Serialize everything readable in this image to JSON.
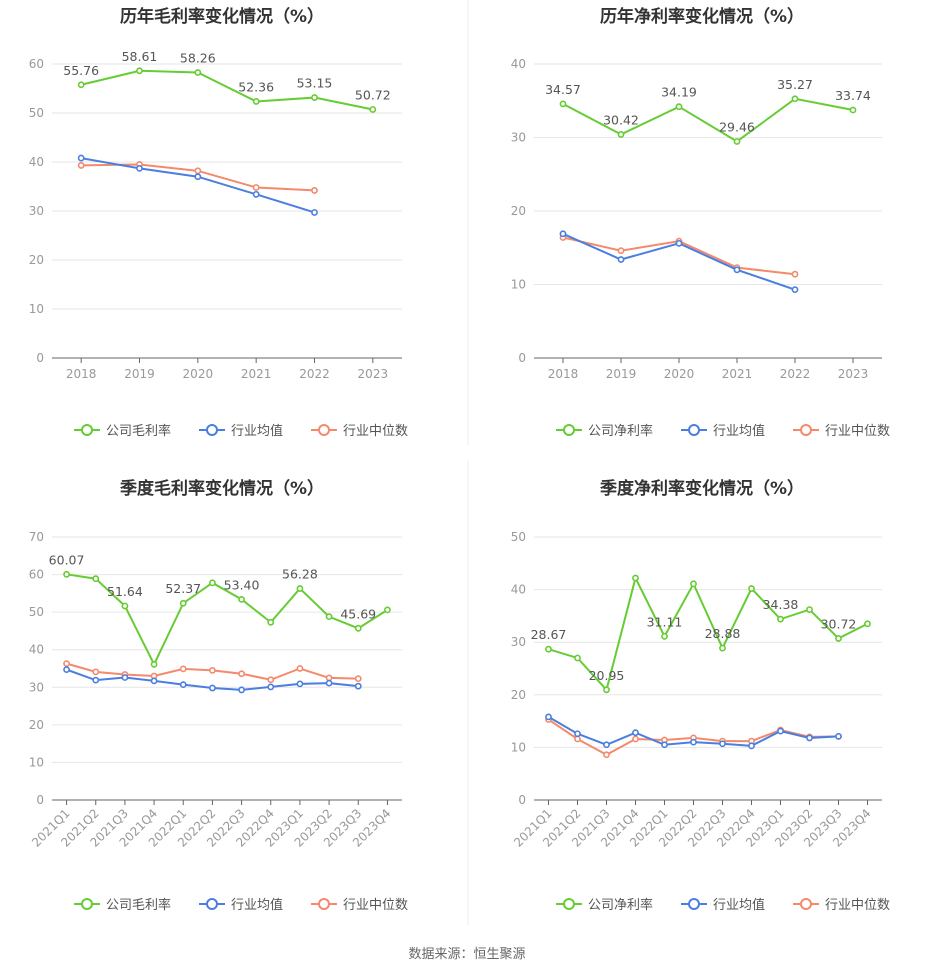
{
  "source": "数据来源：恒生聚源",
  "colors": {
    "company": "#66cc33",
    "industry_avg": "#4a7ee0",
    "industry_median": "#f4896b",
    "grid": "#e6e6e6",
    "axis": "#666666"
  },
  "chart_data": [
    {
      "id": "annual-gross",
      "type": "line",
      "title": "历年毛利率变化情况（%）",
      "categories": [
        "2018",
        "2019",
        "2020",
        "2021",
        "2022",
        "2023"
      ],
      "ylim": [
        0,
        60
      ],
      "yticks": [
        0,
        10,
        20,
        30,
        40,
        50,
        60
      ],
      "rotate_labels": false,
      "series": [
        {
          "name": "公司毛利率",
          "key": "company",
          "values": [
            55.76,
            58.61,
            58.26,
            52.36,
            53.15,
            50.72
          ],
          "labels": [
            "55.76",
            "58.61",
            "58.26",
            "52.36",
            "53.15",
            "50.72"
          ]
        },
        {
          "name": "行业均值",
          "key": "industry_avg",
          "values": [
            40.8,
            38.7,
            37.0,
            33.4,
            29.7,
            null
          ]
        },
        {
          "name": "行业中位数",
          "key": "industry_median",
          "values": [
            39.3,
            39.5,
            38.2,
            34.8,
            34.2,
            null
          ]
        }
      ]
    },
    {
      "id": "annual-net",
      "type": "line",
      "title": "历年净利率变化情况（%）",
      "categories": [
        "2018",
        "2019",
        "2020",
        "2021",
        "2022",
        "2023"
      ],
      "ylim": [
        0,
        40
      ],
      "yticks": [
        0,
        10,
        20,
        30,
        40
      ],
      "rotate_labels": false,
      "series": [
        {
          "name": "公司净利率",
          "key": "company",
          "values": [
            34.57,
            30.42,
            34.19,
            29.46,
            35.27,
            33.74
          ],
          "labels": [
            "34.57",
            "30.42",
            "34.19",
            "29.46",
            "35.27",
            "33.74"
          ]
        },
        {
          "name": "行业均值",
          "key": "industry_avg",
          "values": [
            16.9,
            13.4,
            15.6,
            12.0,
            9.3,
            null
          ]
        },
        {
          "name": "行业中位数",
          "key": "industry_median",
          "values": [
            16.4,
            14.6,
            15.9,
            12.3,
            11.4,
            null
          ]
        }
      ]
    },
    {
      "id": "quarterly-gross",
      "type": "line",
      "title": "季度毛利率变化情况（%）",
      "categories": [
        "2021Q1",
        "2021Q2",
        "2021Q3",
        "2021Q4",
        "2022Q1",
        "2022Q2",
        "2022Q3",
        "2022Q4",
        "2023Q1",
        "2023Q2",
        "2023Q3",
        "2023Q4"
      ],
      "ylim": [
        0,
        70
      ],
      "yticks": [
        0,
        10,
        20,
        30,
        40,
        50,
        60,
        70
      ],
      "rotate_labels": true,
      "series": [
        {
          "name": "公司毛利率",
          "key": "company",
          "values": [
            60.07,
            58.9,
            51.64,
            36.1,
            52.37,
            57.8,
            53.4,
            47.3,
            56.28,
            48.8,
            45.69,
            50.6
          ],
          "labels": [
            "60.07",
            "",
            "51.64",
            "",
            "52.37",
            "",
            "53.40",
            "",
            "56.28",
            "",
            "45.69",
            ""
          ]
        },
        {
          "name": "行业均值",
          "key": "industry_avg",
          "values": [
            34.7,
            31.9,
            32.6,
            31.7,
            30.7,
            29.8,
            29.3,
            30.1,
            30.9,
            31.1,
            30.3,
            null
          ]
        },
        {
          "name": "行业中位数",
          "key": "industry_median",
          "values": [
            36.3,
            34.1,
            33.4,
            33.0,
            34.9,
            34.5,
            33.6,
            32.0,
            35.0,
            32.5,
            32.3,
            null
          ]
        }
      ]
    },
    {
      "id": "quarterly-net",
      "type": "line",
      "title": "季度净利率变化情况（%）",
      "categories": [
        "2021Q1",
        "2021Q2",
        "2021Q3",
        "2021Q4",
        "2022Q1",
        "2022Q2",
        "2022Q3",
        "2022Q4",
        "2023Q1",
        "2023Q2",
        "2023Q3",
        "2023Q4"
      ],
      "ylim": [
        0,
        50
      ],
      "yticks": [
        0,
        10,
        20,
        30,
        40,
        50
      ],
      "rotate_labels": true,
      "series": [
        {
          "name": "公司净利率",
          "key": "company",
          "values": [
            28.67,
            27.0,
            20.95,
            42.2,
            31.11,
            41.1,
            28.88,
            40.2,
            34.38,
            36.2,
            30.72,
            33.5
          ],
          "labels": [
            "28.67",
            "",
            "20.95",
            "",
            "31.11",
            "",
            "28.88",
            "",
            "34.38",
            "",
            "30.72",
            ""
          ]
        },
        {
          "name": "行业均值",
          "key": "industry_avg",
          "values": [
            15.8,
            12.6,
            10.5,
            12.8,
            10.5,
            11.0,
            10.7,
            10.3,
            13.1,
            11.8,
            12.1,
            null
          ]
        },
        {
          "name": "行业中位数",
          "key": "industry_median",
          "values": [
            15.3,
            11.6,
            8.6,
            11.6,
            11.4,
            11.8,
            11.2,
            11.2,
            13.3,
            12.0,
            12.1,
            null
          ]
        }
      ]
    }
  ]
}
